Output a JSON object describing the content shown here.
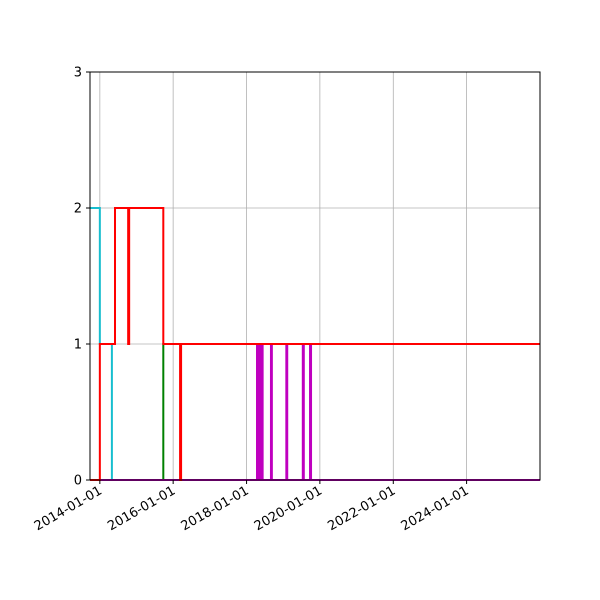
{
  "chart_data": {
    "type": "line",
    "title": "",
    "xlabel": "",
    "ylabel": "",
    "drawstyle": "steps-post",
    "grid": true,
    "legend": "none",
    "xlim": [
      "2013-09-25",
      "2026-01-01"
    ],
    "ylim": [
      0,
      3
    ],
    "x_ticks": [
      "2014-01-01",
      "2016-01-01",
      "2018-01-01",
      "2020-01-01",
      "2022-01-01",
      "2024-01-01"
    ],
    "y_ticks": [
      0,
      1,
      2,
      3
    ],
    "series": [
      {
        "color": "#17becf",
        "x": [
          "2013-09-25",
          "2014-01-01",
          "2014-04-01",
          "2014-05-01",
          "2026-01-01"
        ],
        "y": [
          2,
          1,
          1,
          0,
          0
        ]
      },
      {
        "color": "#008000",
        "x": [
          "2013-09-25",
          "2015-09-25",
          "2018-04-10",
          "2018-04-25",
          "2026-01-01"
        ],
        "y": [
          0,
          1,
          1,
          0,
          0
        ]
      },
      {
        "color": "#bf00bf",
        "x": [
          "2013-09-25",
          "2018-04-15",
          "2018-04-25",
          "2018-05-10",
          "2018-05-20",
          "2018-06-01",
          "2018-06-10",
          "2018-09-01",
          "2018-09-10",
          "2019-02-01",
          "2019-02-10",
          "2019-07-15",
          "2019-07-25",
          "2019-09-25",
          "2019-10-05",
          "2026-01-01"
        ],
        "y": [
          0,
          1,
          0,
          1,
          0,
          1,
          0,
          1,
          0,
          1,
          0,
          1,
          0,
          1,
          0,
          0
        ]
      },
      {
        "color": "#ff0000",
        "x": [
          "2013-09-25",
          "2014-01-01",
          "2014-06-01",
          "2014-10-10",
          "2014-10-20",
          "2015-09-25",
          "2016-03-10",
          "2016-03-20",
          "2026-01-01"
        ],
        "y": [
          0,
          1,
          2,
          1,
          2,
          1,
          0,
          1,
          1
        ]
      }
    ]
  }
}
